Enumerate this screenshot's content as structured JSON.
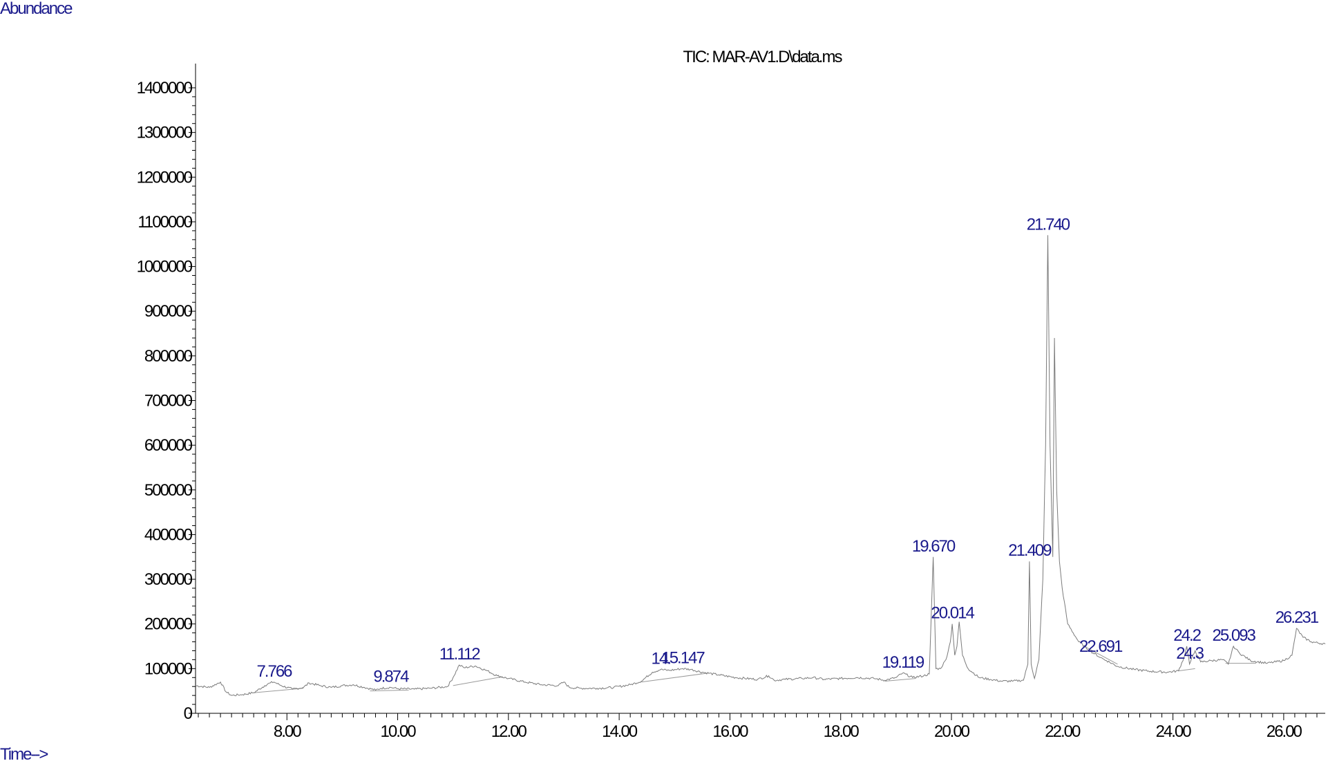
{
  "labels": {
    "ylabel": "Abundance",
    "xlabel": "Time-->"
  },
  "chart_data": {
    "type": "line",
    "title": "TIC: MAR-AV1.D\\data.ms",
    "xlabel": "Time-->",
    "ylabel": "Abundance",
    "xlim": [
      6.35,
      26.75
    ],
    "ylim": [
      0,
      1400000
    ],
    "x_ticks": [
      "8.00",
      "10.00",
      "12.00",
      "14.00",
      "16.00",
      "18.00",
      "20.00",
      "22.00",
      "24.00",
      "26.00"
    ],
    "x_tick_values": [
      8,
      10,
      12,
      14,
      16,
      18,
      20,
      22,
      24,
      26
    ],
    "y_ticks": [
      "0",
      "100000",
      "200000",
      "300000",
      "400000",
      "500000",
      "600000",
      "700000",
      "800000",
      "900000",
      "1000000",
      "1100000",
      "1200000",
      "1300000",
      "1400000"
    ],
    "y_tick_values": [
      0,
      100000,
      200000,
      300000,
      400000,
      500000,
      600000,
      700000,
      800000,
      900000,
      1000000,
      1100000,
      1200000,
      1300000,
      1400000
    ],
    "grid": false,
    "legend": "none",
    "series": [
      {
        "x": [
          6.35,
          6.6,
          6.8,
          6.9,
          7.0,
          7.2,
          7.4,
          7.6,
          7.7,
          7.766,
          7.9,
          8.1,
          8.3,
          8.4,
          8.6,
          8.8,
          9.0,
          9.2,
          9.4,
          9.6,
          9.7,
          9.874,
          10.0,
          10.3,
          10.6,
          10.9,
          11.0,
          11.112,
          11.2,
          11.4,
          11.6,
          11.8,
          12.0,
          12.3,
          12.6,
          12.9,
          13.0,
          13.1,
          13.3,
          13.6,
          13.9,
          14.2,
          14.4,
          14.6,
          14.75,
          14.9,
          15.147,
          15.3,
          15.5,
          15.8,
          16.1,
          16.5,
          16.7,
          16.8,
          17.0,
          17.3,
          17.5,
          17.7,
          18.0,
          18.3,
          18.6,
          18.8,
          19.0,
          19.119,
          19.3,
          19.5,
          19.6,
          19.67,
          19.72,
          19.8,
          19.9,
          19.98,
          20.014,
          20.06,
          20.1,
          20.14,
          20.2,
          20.3,
          20.5,
          20.7,
          20.9,
          21.1,
          21.3,
          21.38,
          21.409,
          21.44,
          21.5,
          21.58,
          21.65,
          21.7,
          21.74,
          21.78,
          21.83,
          21.86,
          21.9,
          21.95,
          22.0,
          22.1,
          22.3,
          22.5,
          22.691,
          22.8,
          23.0,
          23.3,
          23.6,
          23.9,
          24.1,
          24.2,
          24.25,
          24.3,
          24.4,
          24.5,
          24.7,
          24.9,
          25.0,
          25.093,
          25.2,
          25.4,
          25.7,
          26.0,
          26.15,
          26.231,
          26.35,
          26.5,
          26.75
        ],
        "y": [
          62000,
          58000,
          70000,
          48000,
          40000,
          42000,
          46000,
          62000,
          68000,
          70000,
          62000,
          54000,
          58000,
          68000,
          62000,
          58000,
          62000,
          64000,
          58000,
          52000,
          56000,
          58000,
          55000,
          54000,
          56000,
          60000,
          80000,
          108000,
          102000,
          106000,
          96000,
          84000,
          78000,
          70000,
          64000,
          62000,
          70000,
          58000,
          56000,
          56000,
          58000,
          64000,
          72000,
          92000,
          98000,
          96000,
          100000,
          98000,
          92000,
          86000,
          80000,
          76000,
          84000,
          74000,
          76000,
          78000,
          80000,
          76000,
          78000,
          80000,
          78000,
          74000,
          80000,
          90000,
          80000,
          84000,
          88000,
          350000,
          100000,
          100000,
          120000,
          160000,
          200000,
          130000,
          150000,
          205000,
          130000,
          100000,
          80000,
          76000,
          72000,
          72000,
          74000,
          110000,
          340000,
          110000,
          78000,
          120000,
          300000,
          600000,
          1070000,
          600000,
          350000,
          840000,
          500000,
          340000,
          280000,
          200000,
          160000,
          140000,
          125000,
          118000,
          105000,
          98000,
          94000,
          92000,
          95000,
          125000,
          150000,
          110000,
          140000,
          115000,
          118000,
          120000,
          110000,
          150000,
          135000,
          118000,
          112000,
          118000,
          130000,
          190000,
          170000,
          160000,
          155000
        ]
      }
    ],
    "peak_labels": [
      {
        "label": "7.766",
        "x": 7.766
      },
      {
        "label": "9.874",
        "x": 9.874
      },
      {
        "label": "11.112",
        "x": 11.112
      },
      {
        "label": "14.",
        "x": 14.75
      },
      {
        "label": "15.147",
        "x": 15.147
      },
      {
        "label": "19.119",
        "x": 19.119
      },
      {
        "label": "19.670",
        "x": 19.67
      },
      {
        "label": "20.014",
        "x": 20.014
      },
      {
        "label": "21.409",
        "x": 21.409
      },
      {
        "label": "21.740",
        "x": 21.74
      },
      {
        "label": "22.691",
        "x": 22.691
      },
      {
        "label": "24.3",
        "x": 24.3
      },
      {
        "label": "24.2",
        "x": 24.25
      },
      {
        "label": "25.093",
        "x": 25.093
      },
      {
        "label": "26.231",
        "x": 26.231
      }
    ]
  }
}
